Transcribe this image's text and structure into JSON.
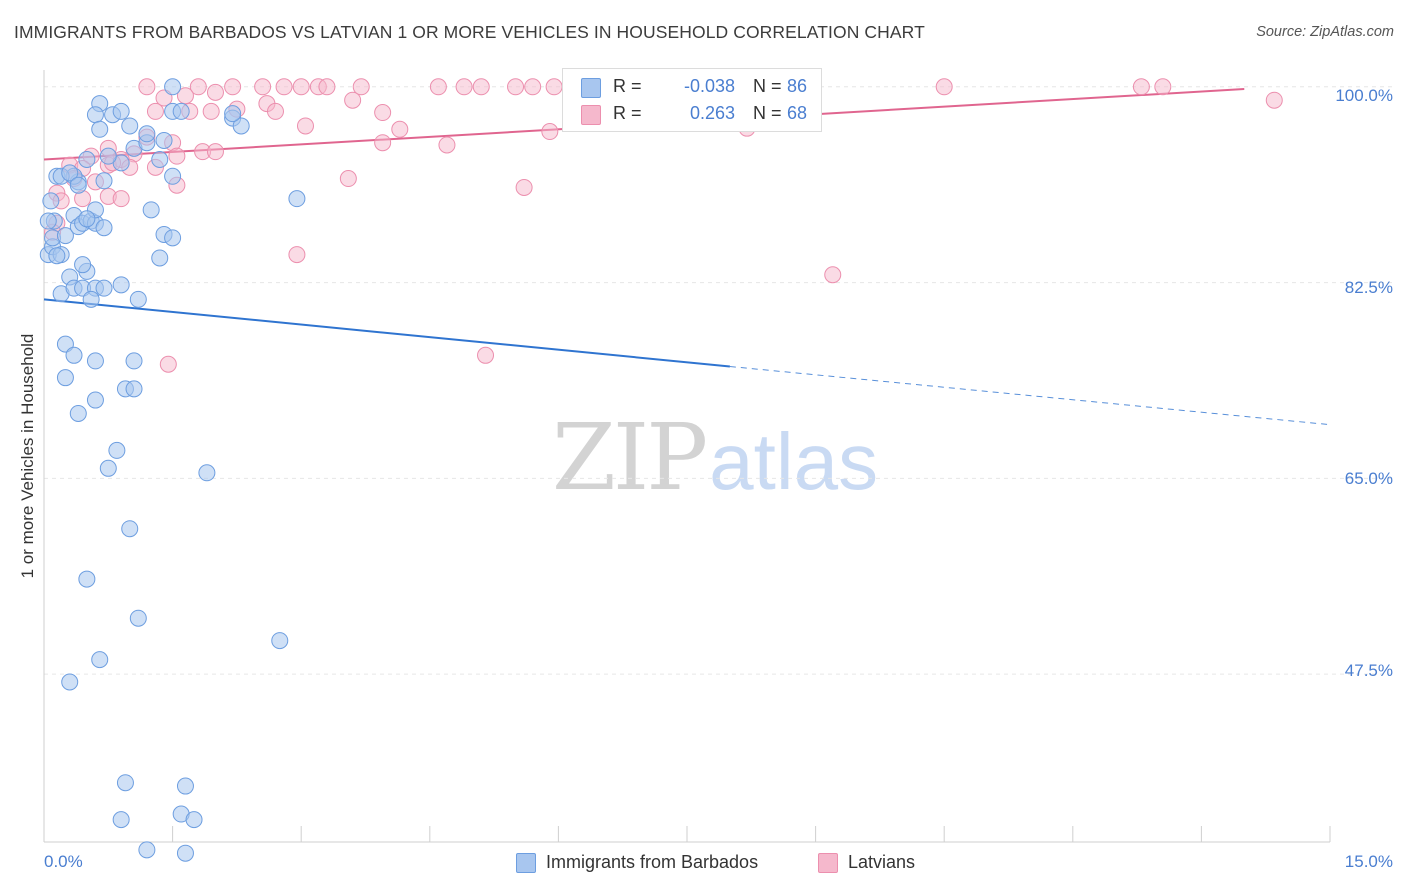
{
  "header": {
    "title": "IMMIGRANTS FROM BARBADOS VS LATVIAN 1 OR MORE VEHICLES IN HOUSEHOLD CORRELATION CHART",
    "source": "Source: ZipAtlas.com"
  },
  "watermark": {
    "zip": "ZIP",
    "atlas": "atlas"
  },
  "legend": {
    "rows": [
      {
        "r_label": "R =",
        "r_value": "-0.038",
        "n_label": "N =",
        "n_value": "86"
      },
      {
        "r_label": "R =",
        "r_value": "0.263",
        "n_label": "N =",
        "n_value": "68"
      }
    ]
  },
  "bottom_legend": {
    "series1": "Immigrants from Barbados",
    "series2": "Latvians"
  },
  "colors": {
    "blue_fill": "#a8c6ef",
    "blue_stroke": "#6d9ee0",
    "blue_line": "#2f74d0",
    "pink_fill": "#f5b8cc",
    "pink_stroke": "#ec8fae",
    "pink_line": "#e0658f",
    "tick_text": "#4a7ed0",
    "grid": "#e6e6e6"
  },
  "chart_data": {
    "type": "scatter",
    "title": "IMMIGRANTS FROM BARBADOS VS LATVIAN 1 OR MORE VEHICLES IN HOUSEHOLD CORRELATION CHART",
    "xlabel": "",
    "ylabel": "1 or more Vehicles in Household",
    "xlim": [
      0,
      15
    ],
    "ylim": [
      32.5,
      101.5
    ],
    "x_tick_labels": [
      "0.0%",
      "15.0%"
    ],
    "y_ticks": [
      100.0,
      82.5,
      65.0,
      47.5
    ],
    "y_tick_labels": [
      "100.0%",
      "82.5%",
      "65.0%",
      "47.5%"
    ],
    "grid": true,
    "series": [
      {
        "name": "Immigrants from Barbados",
        "color": "#a8c6ef",
        "R": -0.038,
        "N": 86,
        "trend": {
          "x0": 0.0,
          "y0": 81.0,
          "x1": 8.0,
          "y1": 75.0,
          "dash_x1": 15.0,
          "dash_y1": 69.8
        },
        "points": [
          [
            0.05,
            85.0
          ],
          [
            0.1,
            85.7
          ],
          [
            0.12,
            88.0
          ],
          [
            0.15,
            92.0
          ],
          [
            0.05,
            88.0
          ],
          [
            0.08,
            89.8
          ],
          [
            0.1,
            86.5
          ],
          [
            0.2,
            81.5
          ],
          [
            0.3,
            83.0
          ],
          [
            0.35,
            82.0
          ],
          [
            0.45,
            82.0
          ],
          [
            0.5,
            83.5
          ],
          [
            0.6,
            82.0
          ],
          [
            0.55,
            81.0
          ],
          [
            0.7,
            82.0
          ],
          [
            0.9,
            82.3
          ],
          [
            1.1,
            81.0
          ],
          [
            0.2,
            85.0
          ],
          [
            0.25,
            86.7
          ],
          [
            0.35,
            88.5
          ],
          [
            0.4,
            87.5
          ],
          [
            0.45,
            87.8
          ],
          [
            0.55,
            88.0
          ],
          [
            0.6,
            87.8
          ],
          [
            0.6,
            89.0
          ],
          [
            0.7,
            87.4
          ],
          [
            0.4,
            91.5
          ],
          [
            0.35,
            92.0
          ],
          [
            0.5,
            93.5
          ],
          [
            0.7,
            91.6
          ],
          [
            0.9,
            93.2
          ],
          [
            0.2,
            92.0
          ],
          [
            0.3,
            92.3
          ],
          [
            0.4,
            91.2
          ],
          [
            1.25,
            89.0
          ],
          [
            1.4,
            86.8
          ],
          [
            1.5,
            86.5
          ],
          [
            1.35,
            84.7
          ],
          [
            0.8,
            97.5
          ],
          [
            0.9,
            97.8
          ],
          [
            1.0,
            96.5
          ],
          [
            0.65,
            98.5
          ],
          [
            1.05,
            94.5
          ],
          [
            1.2,
            95.0
          ],
          [
            1.35,
            93.5
          ],
          [
            1.4,
            95.2
          ],
          [
            1.5,
            92.0
          ],
          [
            1.2,
            95.8
          ],
          [
            1.5,
            97.8
          ],
          [
            1.6,
            97.8
          ],
          [
            1.5,
            100.0
          ],
          [
            2.2,
            97.2
          ],
          [
            2.3,
            96.5
          ],
          [
            2.2,
            97.6
          ],
          [
            2.95,
            90.0
          ],
          [
            0.25,
            77.0
          ],
          [
            0.35,
            76.0
          ],
          [
            0.6,
            75.5
          ],
          [
            1.05,
            75.5
          ],
          [
            0.25,
            74.0
          ],
          [
            0.6,
            72.0
          ],
          [
            0.95,
            73.0
          ],
          [
            1.05,
            73.0
          ],
          [
            0.4,
            70.8
          ],
          [
            0.85,
            67.5
          ],
          [
            0.75,
            65.9
          ],
          [
            1.9,
            65.5
          ],
          [
            1.0,
            60.5
          ],
          [
            0.5,
            56.0
          ],
          [
            1.1,
            52.5
          ],
          [
            2.75,
            50.5
          ],
          [
            0.65,
            48.8
          ],
          [
            0.3,
            46.8
          ],
          [
            0.95,
            37.8
          ],
          [
            1.65,
            37.5
          ],
          [
            0.9,
            34.5
          ],
          [
            1.6,
            35.0
          ],
          [
            1.75,
            34.5
          ],
          [
            1.2,
            31.8
          ],
          [
            1.65,
            31.5
          ],
          [
            0.6,
            97.5
          ],
          [
            0.65,
            96.2
          ],
          [
            0.75,
            93.8
          ],
          [
            0.5,
            88.2
          ],
          [
            0.15,
            84.9
          ],
          [
            0.45,
            84.1
          ]
        ]
      },
      {
        "name": "Latvians",
        "color": "#f5b8cc",
        "R": 0.263,
        "N": 68,
        "trend": {
          "x0": 0.0,
          "y0": 93.5,
          "x1": 14.0,
          "y1": 99.8
        },
        "points": [
          [
            1.2,
            100.0
          ],
          [
            1.8,
            100.0
          ],
          [
            2.2,
            100.0
          ],
          [
            2.55,
            100.0
          ],
          [
            2.8,
            100.0
          ],
          [
            3.0,
            100.0
          ],
          [
            3.2,
            100.0
          ],
          [
            3.3,
            100.0
          ],
          [
            3.7,
            100.0
          ],
          [
            4.6,
            100.0
          ],
          [
            4.9,
            100.0
          ],
          [
            5.1,
            100.0
          ],
          [
            5.5,
            100.0
          ],
          [
            5.7,
            100.0
          ],
          [
            5.95,
            100.0
          ],
          [
            8.7,
            100.0
          ],
          [
            10.5,
            100.0
          ],
          [
            12.8,
            100.0
          ],
          [
            13.05,
            100.0
          ],
          [
            14.35,
            98.8
          ],
          [
            1.4,
            99.0
          ],
          [
            1.65,
            99.2
          ],
          [
            2.0,
            99.5
          ],
          [
            2.6,
            98.5
          ],
          [
            3.6,
            98.8
          ],
          [
            1.3,
            97.8
          ],
          [
            1.7,
            97.8
          ],
          [
            1.95,
            97.8
          ],
          [
            2.25,
            98.0
          ],
          [
            2.7,
            97.8
          ],
          [
            3.95,
            97.7
          ],
          [
            3.05,
            96.5
          ],
          [
            4.15,
            96.2
          ],
          [
            5.9,
            96.0
          ],
          [
            8.2,
            96.3
          ],
          [
            1.2,
            95.5
          ],
          [
            1.5,
            95.0
          ],
          [
            0.75,
            94.5
          ],
          [
            1.05,
            94.0
          ],
          [
            1.85,
            94.2
          ],
          [
            3.95,
            95.0
          ],
          [
            4.7,
            94.8
          ],
          [
            0.9,
            93.5
          ],
          [
            1.55,
            93.8
          ],
          [
            2.0,
            94.2
          ],
          [
            0.55,
            93.8
          ],
          [
            0.75,
            93.0
          ],
          [
            1.0,
            92.8
          ],
          [
            1.3,
            92.8
          ],
          [
            0.3,
            93.0
          ],
          [
            0.45,
            92.7
          ],
          [
            0.6,
            91.5
          ],
          [
            0.35,
            91.8
          ],
          [
            1.55,
            91.2
          ],
          [
            3.55,
            91.8
          ],
          [
            5.6,
            91.0
          ],
          [
            0.15,
            90.5
          ],
          [
            0.2,
            89.8
          ],
          [
            0.45,
            90.0
          ],
          [
            0.75,
            90.2
          ],
          [
            0.9,
            90.0
          ],
          [
            0.15,
            87.8
          ],
          [
            0.1,
            87.0
          ],
          [
            2.95,
            85.0
          ],
          [
            9.2,
            83.2
          ],
          [
            1.45,
            75.2
          ],
          [
            5.15,
            76.0
          ],
          [
            0.8,
            93.2
          ]
        ]
      }
    ]
  }
}
